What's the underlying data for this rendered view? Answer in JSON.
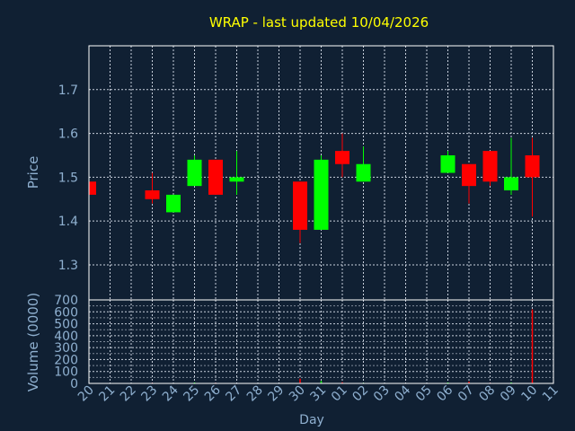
{
  "chart_data": {
    "type": "candlestick",
    "title": "WRAP - last updated 10/04/2026",
    "colors": {
      "background": "#102033",
      "frame": "#ffffff",
      "grid": "#c8d0dc",
      "title": "#ffff00",
      "axis_text": "#8fb0d0",
      "up": "#00ff00",
      "down": "#ff0000"
    },
    "price_panel": {
      "ylabel": "Price",
      "ylim": [
        1.22,
        1.8
      ],
      "yticks": [
        "1.3",
        "1.4",
        "1.5",
        "1.6",
        "1.7"
      ],
      "ytick_values": [
        1.3,
        1.4,
        1.5,
        1.6,
        1.7
      ],
      "grid": true
    },
    "volume_panel": {
      "ylabel": "Volume (0000)",
      "ylim": [
        0,
        700
      ],
      "yticks": [
        "0",
        "100",
        "200",
        "300",
        "400",
        "500",
        "600",
        "700"
      ],
      "ytick_values": [
        0,
        100,
        200,
        300,
        400,
        500,
        600,
        700
      ],
      "minor_step": 50,
      "grid": true
    },
    "xlabel": "Day",
    "x_ticks": [
      "20",
      "21",
      "22",
      "23",
      "24",
      "25",
      "26",
      "27",
      "28",
      "29",
      "30",
      "31",
      "01",
      "02",
      "03",
      "04",
      "05",
      "06",
      "07",
      "08",
      "09",
      "10",
      "11"
    ],
    "candles": [
      {
        "day": "20",
        "open": 1.49,
        "high": 1.49,
        "low": 1.46,
        "close": 1.46,
        "volume": 0
      },
      {
        "day": "23",
        "open": 1.47,
        "high": 1.51,
        "low": 1.44,
        "close": 1.45,
        "volume": 5
      },
      {
        "day": "24",
        "open": 1.42,
        "high": 1.46,
        "low": 1.42,
        "close": 1.46,
        "volume": 3
      },
      {
        "day": "25",
        "open": 1.48,
        "high": 1.55,
        "low": 1.48,
        "close": 1.54,
        "volume": 8
      },
      {
        "day": "26",
        "open": 1.54,
        "high": 1.54,
        "low": 1.46,
        "close": 1.46,
        "volume": 5
      },
      {
        "day": "27",
        "open": 1.49,
        "high": 1.56,
        "low": 1.46,
        "close": 1.5,
        "volume": 3
      },
      {
        "day": "30",
        "open": 1.49,
        "high": 1.49,
        "low": 1.35,
        "close": 1.38,
        "volume": 40
      },
      {
        "day": "31",
        "open": 1.38,
        "high": 1.55,
        "low": 1.38,
        "close": 1.54,
        "volume": 20
      },
      {
        "day": "01",
        "open": 1.56,
        "high": 1.6,
        "low": 1.5,
        "close": 1.53,
        "volume": 10
      },
      {
        "day": "02",
        "open": 1.49,
        "high": 1.57,
        "low": 1.49,
        "close": 1.53,
        "volume": 5
      },
      {
        "day": "06",
        "open": 1.51,
        "high": 1.56,
        "low": 1.51,
        "close": 1.55,
        "volume": 8
      },
      {
        "day": "07",
        "open": 1.53,
        "high": 1.53,
        "low": 1.44,
        "close": 1.48,
        "volume": 15
      },
      {
        "day": "08",
        "open": 1.56,
        "high": 1.56,
        "low": 1.48,
        "close": 1.49,
        "volume": 5
      },
      {
        "day": "09",
        "open": 1.47,
        "high": 1.59,
        "low": 1.46,
        "close": 1.5,
        "volume": 8
      },
      {
        "day": "10",
        "open": 1.55,
        "high": 1.59,
        "low": 1.41,
        "close": 1.5,
        "volume": 620
      }
    ]
  }
}
